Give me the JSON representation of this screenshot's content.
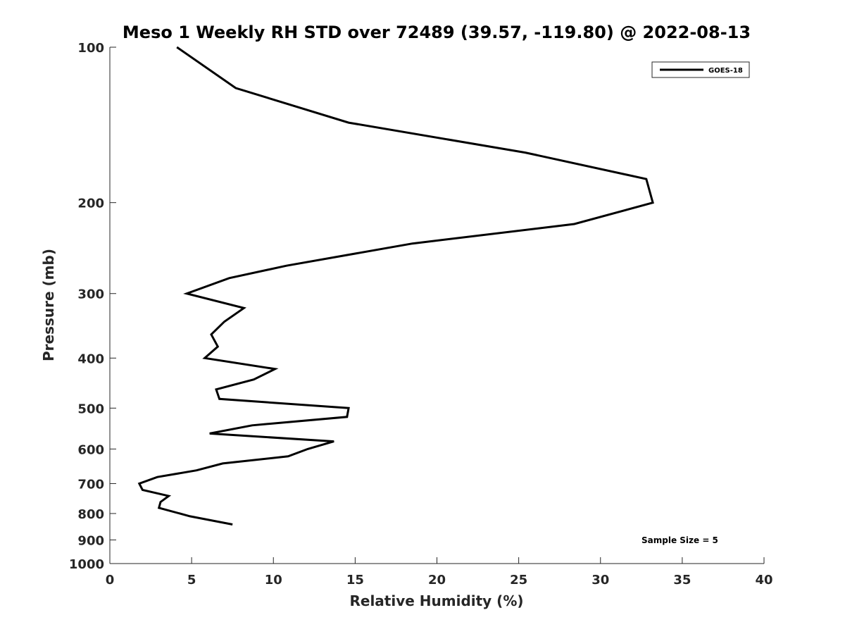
{
  "chart_data": {
    "type": "line",
    "title": "Meso 1 Weekly RH STD over 72489 (39.57, -119.80) @ 2022-08-13",
    "xlabel": "Relative Humidity (%)",
    "ylabel": "Pressure (mb)",
    "xlim": [
      0,
      40
    ],
    "ylim": [
      1000,
      100
    ],
    "yscale": "log",
    "y_reversed": true,
    "x_ticks": [
      "0",
      "5",
      "10",
      "15",
      "20",
      "25",
      "30",
      "35",
      "40"
    ],
    "y_ticks": [
      "100",
      "200",
      "300",
      "400",
      "500",
      "600",
      "700",
      "800",
      "900",
      "1000"
    ],
    "grid": false,
    "legend_position": "top-right",
    "series": [
      {
        "name": "GOES-18",
        "color": "#000000",
        "points": [
          {
            "x": 4.1,
            "y": 100
          },
          {
            "x": 7.7,
            "y": 120
          },
          {
            "x": 14.6,
            "y": 140
          },
          {
            "x": 25.4,
            "y": 160
          },
          {
            "x": 32.8,
            "y": 180
          },
          {
            "x": 33.2,
            "y": 200
          },
          {
            "x": 28.4,
            "y": 220
          },
          {
            "x": 18.5,
            "y": 240
          },
          {
            "x": 10.8,
            "y": 265
          },
          {
            "x": 7.3,
            "y": 280
          },
          {
            "x": 4.7,
            "y": 300
          },
          {
            "x": 8.2,
            "y": 320
          },
          {
            "x": 7.0,
            "y": 340
          },
          {
            "x": 6.2,
            "y": 360
          },
          {
            "x": 6.6,
            "y": 380
          },
          {
            "x": 5.8,
            "y": 400
          },
          {
            "x": 10.1,
            "y": 420
          },
          {
            "x": 8.8,
            "y": 440
          },
          {
            "x": 6.5,
            "y": 460
          },
          {
            "x": 6.7,
            "y": 480
          },
          {
            "x": 14.6,
            "y": 500
          },
          {
            "x": 14.5,
            "y": 520
          },
          {
            "x": 8.7,
            "y": 540
          },
          {
            "x": 6.1,
            "y": 560
          },
          {
            "x": 13.7,
            "y": 580
          },
          {
            "x": 12.1,
            "y": 600
          },
          {
            "x": 10.9,
            "y": 620
          },
          {
            "x": 6.9,
            "y": 640
          },
          {
            "x": 5.3,
            "y": 660
          },
          {
            "x": 2.9,
            "y": 680
          },
          {
            "x": 1.8,
            "y": 700
          },
          {
            "x": 2.0,
            "y": 720
          },
          {
            "x": 3.6,
            "y": 740
          },
          {
            "x": 3.1,
            "y": 760
          },
          {
            "x": 3.0,
            "y": 780
          },
          {
            "x": 4.9,
            "y": 810
          },
          {
            "x": 7.5,
            "y": 840
          }
        ]
      }
    ],
    "annotations": [
      {
        "text": "Sample Size = 5",
        "position": "bottom-right"
      }
    ]
  }
}
